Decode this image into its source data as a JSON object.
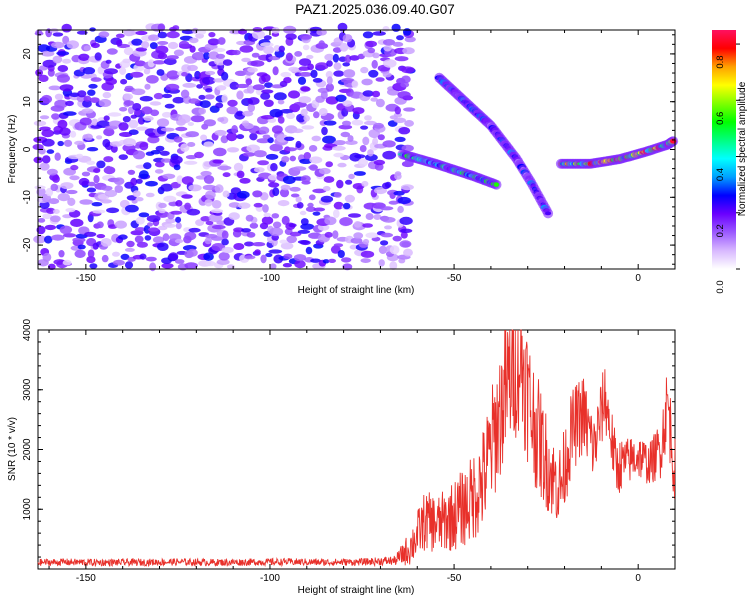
{
  "title": "PAZ1.2025.036.09.40.G07",
  "chart_data": [
    {
      "type": "heatmap",
      "xlabel": "Height of straight line (km)",
      "ylabel": "Frequency (Hz)",
      "xlim": [
        -163,
        10
      ],
      "ylim": [
        -25,
        25
      ],
      "xticks": [
        -150,
        -100,
        -50,
        0
      ],
      "yticks": [
        -20,
        -10,
        0,
        10,
        20
      ],
      "xtick_labels": [
        "-150",
        "-100",
        "-50",
        "0"
      ],
      "ytick_labels": [
        "-20",
        "-10",
        "0",
        "10",
        "20"
      ],
      "colorbar": {
        "label": "Normalized spectral amplitude",
        "range": [
          0,
          0.85
        ],
        "ticks": [
          0,
          0.2,
          0.4,
          0.6,
          0.8
        ],
        "tick_labels": [
          "0.0",
          "0.2",
          "0.4",
          "0.6",
          "0.8"
        ],
        "colormap": [
          "#ffffff",
          "#d8b8ff",
          "#9b59ff",
          "#6a00ff",
          "#0000ff",
          "#00a0ff",
          "#00ffff",
          "#00ff80",
          "#00ff00",
          "#80ff00",
          "#ffff00",
          "#ffa000",
          "#ff0000",
          "#ff1060"
        ]
      },
      "noise_region": {
        "x_range": [
          -163,
          -64
        ],
        "y_range": [
          -25,
          25
        ],
        "typical_amplitude": 0.12
      },
      "signal_tracks": [
        {
          "points": [
            [
              -64,
              -1
            ],
            [
              -55,
              -3
            ],
            [
              -45,
              -5.5
            ],
            [
              -38,
              -7.5
            ]
          ],
          "peak_amplitude": 0.5
        },
        {
          "points": [
            [
              -54,
              15
            ],
            [
              -47,
              10
            ],
            [
              -40,
              5
            ],
            [
              -33,
              -2
            ],
            [
              -29,
              -7
            ],
            [
              -24,
              -14
            ]
          ],
          "peak_amplitude": 0.3
        },
        {
          "points": [
            [
              -21,
              -3
            ],
            [
              -13,
              -3
            ],
            [
              -5,
              -2
            ],
            [
              2,
              -0.5
            ],
            [
              8,
              1
            ],
            [
              10,
              2
            ]
          ],
          "peak_amplitude": 0.78
        }
      ]
    },
    {
      "type": "line",
      "xlabel": "Height of straight line (km)",
      "ylabel": "SNR (10 * v/v)",
      "xlim": [
        -163,
        10
      ],
      "ylim": [
        0,
        4000
      ],
      "xticks": [
        -150,
        -100,
        -50,
        0
      ],
      "yticks": [
        1000,
        2000,
        3000,
        4000
      ],
      "xtick_labels": [
        "-150",
        "-100",
        "-50",
        "0"
      ],
      "ytick_labels": [
        "1000",
        "2000",
        "3000",
        "4000"
      ],
      "series": [
        {
          "color": "#e8302a",
          "x": [
            -163,
            -155,
            -145,
            -135,
            -125,
            -115,
            -105,
            -95,
            -85,
            -75,
            -66,
            -62,
            -58,
            -54,
            -50,
            -46,
            -42,
            -38,
            -35,
            -32,
            -29,
            -26,
            -23,
            -21,
            -18,
            -15,
            -12,
            -9,
            -6,
            -3,
            0,
            3,
            6,
            8,
            10
          ],
          "y": [
            110,
            115,
            108,
            112,
            118,
            110,
            115,
            120,
            112,
            118,
            140,
            350,
            800,
            750,
            900,
            1100,
            1500,
            2500,
            3200,
            3600,
            2600,
            2000,
            1500,
            1400,
            2300,
            2600,
            2000,
            2900,
            1700,
            1800,
            1900,
            1750,
            2000,
            2800,
            1600
          ],
          "spread": [
            60,
            60,
            60,
            60,
            60,
            60,
            60,
            60,
            60,
            60,
            80,
            300,
            500,
            500,
            600,
            700,
            900,
            1100,
            1200,
            1300,
            1100,
            900,
            700,
            700,
            700,
            700,
            600,
            600,
            500,
            400,
            400,
            350,
            500,
            700,
            600
          ]
        }
      ]
    }
  ]
}
